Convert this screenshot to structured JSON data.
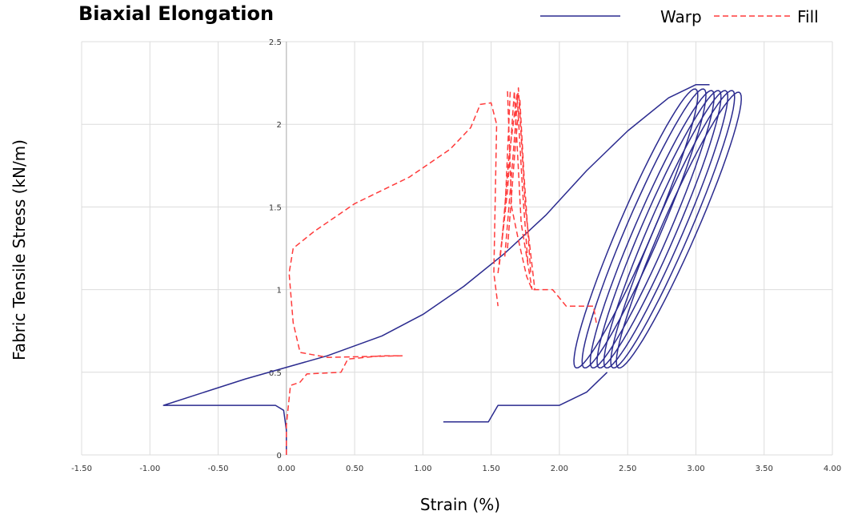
{
  "chart_data": {
    "type": "line",
    "title": "Biaxial Elongation",
    "xlabel": "Strain (%)",
    "ylabel": "Fabric Tensile Stress (kN/m)",
    "xlim": [
      -1.5,
      4.0
    ],
    "ylim": [
      0,
      2.5
    ],
    "grid": true,
    "legend": "top-right",
    "x_ticks": [
      "-1.50",
      "-1.00",
      "-0.50",
      "0.00",
      "0.50",
      "1.00",
      "1.50",
      "2.00",
      "2.50",
      "3.00",
      "3.50",
      "4.00"
    ],
    "y_ticks": [
      "0",
      "0.5",
      "1",
      "1.5",
      "2",
      "2.5"
    ],
    "series": [
      {
        "name": "Warp",
        "color": "#2b2b8f",
        "style": "solid",
        "segments": [
          [
            [
              0.0,
              0.0
            ],
            [
              0.0,
              0.15
            ],
            [
              -0.02,
              0.27
            ],
            [
              -0.08,
              0.3
            ],
            [
              -0.9,
              0.3
            ],
            [
              -0.3,
              0.46
            ],
            [
              0.3,
              0.6
            ],
            [
              0.7,
              0.72
            ],
            [
              1.0,
              0.85
            ],
            [
              1.3,
              1.02
            ],
            [
              1.6,
              1.22
            ],
            [
              1.9,
              1.45
            ],
            [
              2.2,
              1.72
            ],
            [
              2.5,
              1.96
            ],
            [
              2.8,
              2.16
            ],
            [
              3.0,
              2.24
            ],
            [
              3.1,
              2.24
            ]
          ],
          [
            [
              1.15,
              0.2
            ],
            [
              1.48,
              0.2
            ],
            [
              1.55,
              0.3
            ],
            [
              2.0,
              0.3
            ],
            [
              2.2,
              0.38
            ],
            [
              2.35,
              0.5
            ]
          ]
        ],
        "loops": [
          {
            "x0": 2.0,
            "x1": 3.12,
            "y0": 0.5,
            "y1": 2.24
          },
          {
            "x0": 2.06,
            "x1": 3.18,
            "y0": 0.5,
            "y1": 2.24
          },
          {
            "x0": 2.12,
            "x1": 3.24,
            "y0": 0.5,
            "y1": 2.23
          },
          {
            "x0": 2.17,
            "x1": 3.29,
            "y0": 0.5,
            "y1": 2.23
          },
          {
            "x0": 2.22,
            "x1": 3.34,
            "y0": 0.5,
            "y1": 2.23
          },
          {
            "x0": 2.27,
            "x1": 3.39,
            "y0": 0.5,
            "y1": 2.23
          },
          {
            "x0": 2.31,
            "x1": 3.44,
            "y0": 0.5,
            "y1": 2.22
          }
        ]
      },
      {
        "name": "Fill",
        "color": "#ff3b3b",
        "style": "dashed",
        "segments": [
          [
            [
              0.0,
              0.0
            ],
            [
              0.0,
              0.18
            ],
            [
              0.03,
              0.42
            ],
            [
              0.1,
              0.44
            ],
            [
              0.15,
              0.49
            ],
            [
              0.4,
              0.5
            ],
            [
              0.45,
              0.58
            ],
            [
              0.7,
              0.6
            ],
            [
              0.85,
              0.6
            ]
          ],
          [
            [
              0.85,
              0.6
            ],
            [
              0.3,
              0.59
            ],
            [
              0.1,
              0.62
            ],
            [
              0.05,
              0.8
            ],
            [
              0.02,
              1.1
            ],
            [
              0.05,
              1.25
            ],
            [
              0.2,
              1.35
            ],
            [
              0.5,
              1.52
            ],
            [
              0.9,
              1.68
            ],
            [
              1.2,
              1.85
            ],
            [
              1.35,
              1.98
            ],
            [
              1.42,
              2.12
            ],
            [
              1.5,
              2.13
            ],
            [
              1.54,
              2.0
            ],
            [
              1.52,
              1.1
            ],
            [
              1.55,
              0.9
            ]
          ],
          [
            [
              1.62,
              2.2
            ],
            [
              1.65,
              1.5
            ],
            [
              1.7,
              1.3
            ],
            [
              1.76,
              1.08
            ],
            [
              1.8,
              1.0
            ],
            [
              1.95,
              1.0
            ],
            [
              2.05,
              0.9
            ],
            [
              2.25,
              0.9
            ],
            [
              2.27,
              0.8
            ]
          ],
          [
            [
              1.55,
              1.1
            ],
            [
              1.6,
              1.45
            ],
            [
              1.64,
              2.2
            ]
          ],
          [
            [
              1.56,
              1.15
            ],
            [
              1.62,
              1.6
            ],
            [
              1.67,
              2.2
            ],
            [
              1.72,
              1.4
            ],
            [
              1.8,
              1.0
            ]
          ],
          [
            [
              1.6,
              1.2
            ],
            [
              1.65,
              1.7
            ],
            [
              1.7,
              2.22
            ],
            [
              1.75,
              1.5
            ],
            [
              1.82,
              1.0
            ]
          ],
          [
            [
              1.62,
              1.25
            ],
            [
              1.68,
              1.9
            ],
            [
              1.71,
              2.15
            ],
            [
              1.74,
              1.7
            ],
            [
              1.79,
              1.1
            ]
          ],
          [
            [
              1.58,
              1.3
            ],
            [
              1.63,
              1.8
            ],
            [
              1.69,
              2.18
            ],
            [
              1.73,
              1.6
            ],
            [
              1.77,
              1.15
            ]
          ]
        ]
      }
    ]
  }
}
